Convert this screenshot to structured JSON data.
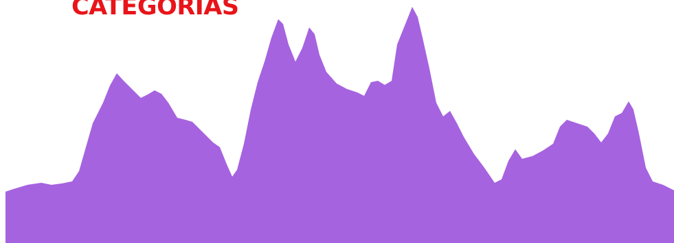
{
  "header": {
    "title": "CATEGORIAS"
  }
}
